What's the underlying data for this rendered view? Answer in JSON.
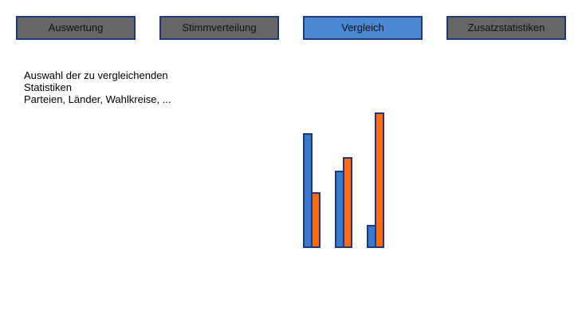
{
  "tabs": [
    {
      "label": "Auswertung",
      "active": false
    },
    {
      "label": "Stimmverteilung",
      "active": false
    },
    {
      "label": "Vergleich",
      "active": true
    },
    {
      "label": "Zusatzstatistiken",
      "active": false
    }
  ],
  "description": {
    "line1": "Auswahl der zu vergleichenden",
    "line2": "Statistiken",
    "line3": "Parteien, Länder, Wahlkreise, ..."
  },
  "colors": {
    "tab_inactive": "#666666",
    "tab_active": "#4a88d4",
    "border": "#1f3a7a",
    "series_a": "#3a78cc",
    "series_b": "#ff6a10"
  },
  "chart_data": {
    "type": "bar",
    "categories": [
      "",
      "",
      ""
    ],
    "series": [
      {
        "values": [
          142,
          95,
          27
        ]
      },
      {
        "values": [
          68,
          112,
          168
        ]
      }
    ],
    "ylim": [
      0,
      170
    ],
    "title": "",
    "xlabel": "",
    "ylabel": "",
    "grid": false
  }
}
